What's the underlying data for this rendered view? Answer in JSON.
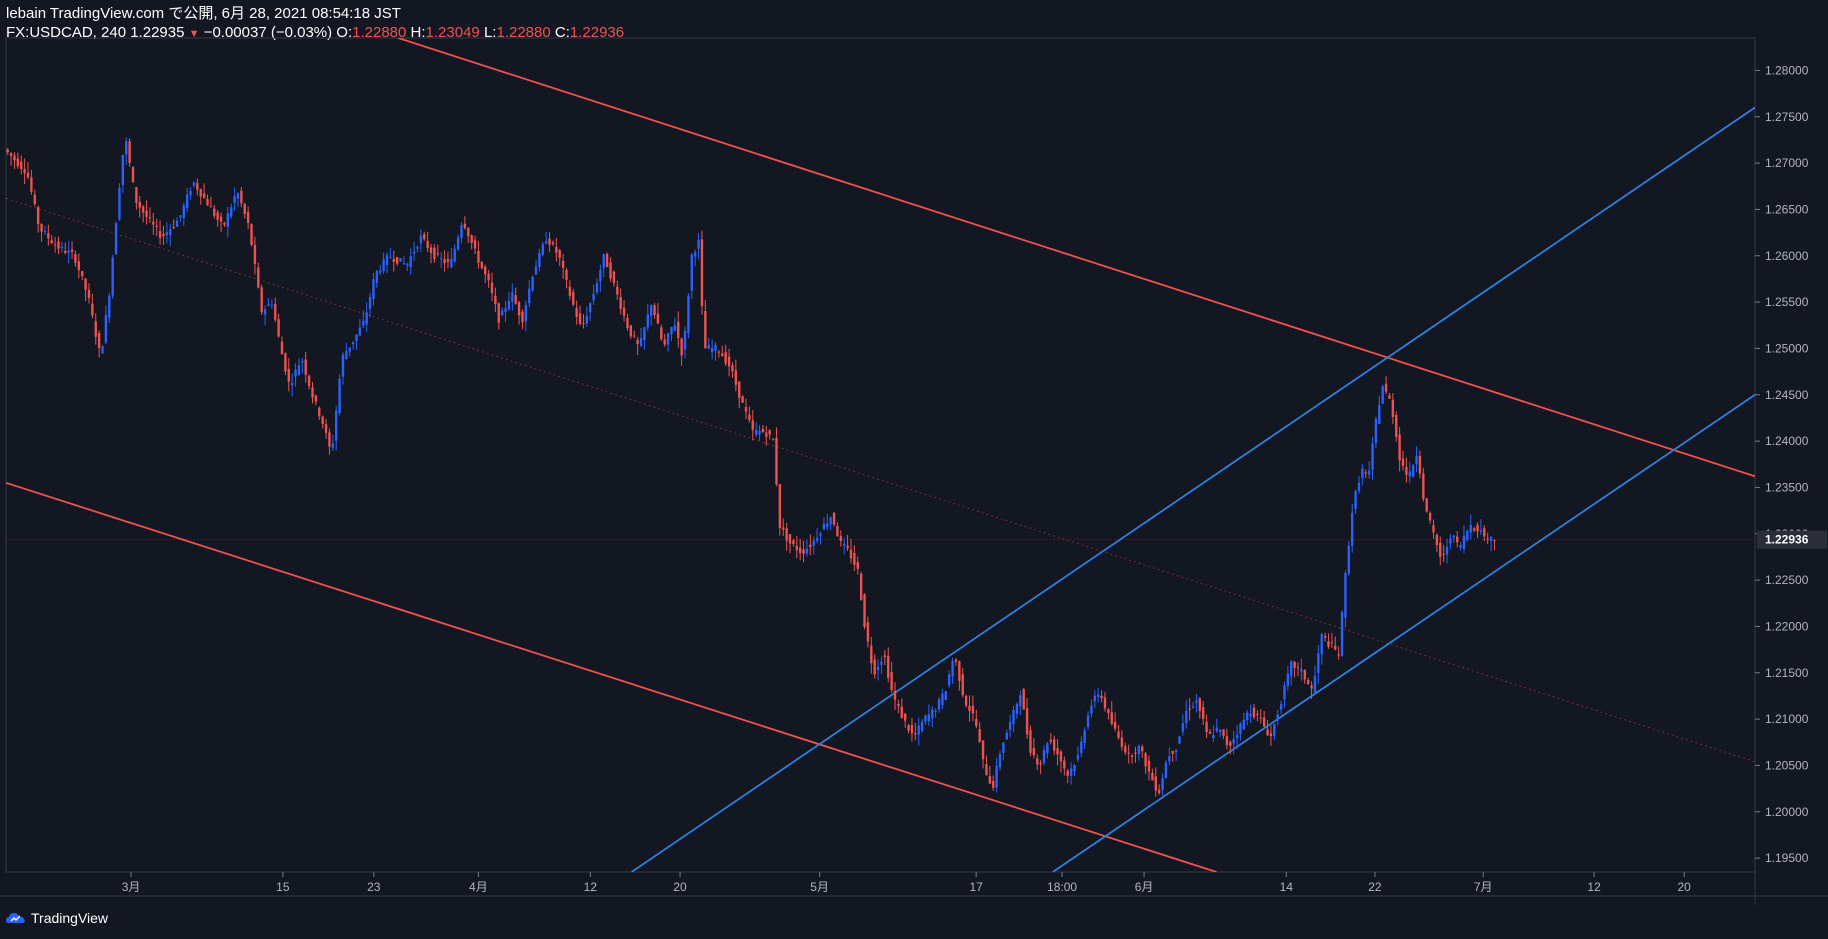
{
  "header": {
    "publish_line": "lebain TradingView.com で公開, 6月 28, 2021 08:54:18 JST",
    "symbol_info": "FX:USDCAD, 240",
    "last": "1.22935",
    "change_arrow": "▼",
    "change": "−0.00037 (−0.03%)",
    "o_label": "O:",
    "o_value": "1.22880",
    "h_label": "H:",
    "h_value": "1.23049",
    "l_label": "L:",
    "l_value": "1.22880",
    "c_label": "C:",
    "c_value": "1.22936"
  },
  "footer": {
    "brand": "TradingView"
  },
  "colors": {
    "background": "#131722",
    "up": "#2962ff",
    "down": "#ef5350",
    "channel_down": "#f0524f",
    "channel_up": "#2f7fe0",
    "axis_text": "#b2b5be",
    "price_tag_bg": "#2a2e39"
  },
  "chart_data": {
    "type": "candlestick",
    "symbol": "FX:USDCAD",
    "interval": "240",
    "ylim": [
      1.1935,
      1.2835
    ],
    "y_ticks": [
      "1.28000",
      "1.27500",
      "1.27000",
      "1.26500",
      "1.26000",
      "1.25500",
      "1.25000",
      "1.24500",
      "1.24000",
      "1.23500",
      "1.23000",
      "1.22500",
      "1.22000",
      "1.21500",
      "1.21000",
      "1.20500",
      "1.20000",
      "1.19500"
    ],
    "current_price_label": "1.22936",
    "x_ticks": [
      {
        "label": "3月",
        "pos": 0.0715
      },
      {
        "label": "15",
        "pos": 0.1583
      },
      {
        "label": "23",
        "pos": 0.2103
      },
      {
        "label": "4月",
        "pos": 0.2701
      },
      {
        "label": "12",
        "pos": 0.3341
      },
      {
        "label": "20",
        "pos": 0.3854
      },
      {
        "label": "5月",
        "pos": 0.4652
      },
      {
        "label": "17",
        "pos": 0.5547
      },
      {
        "label": "18:00",
        "pos": 0.6038
      },
      {
        "label": "6月",
        "pos": 0.6507
      },
      {
        "label": "14",
        "pos": 0.732
      },
      {
        "label": "22",
        "pos": 0.7827
      },
      {
        "label": "7月",
        "pos": 0.8446
      },
      {
        "label": "12",
        "pos": 0.908
      },
      {
        "label": "20",
        "pos": 0.9595
      }
    ],
    "price_path": [
      [
        0.0,
        1.2715
      ],
      [
        0.013,
        1.269
      ],
      [
        0.02,
        1.263
      ],
      [
        0.03,
        1.261
      ],
      [
        0.04,
        1.26
      ],
      [
        0.048,
        1.2555
      ],
      [
        0.055,
        1.249
      ],
      [
        0.06,
        1.256
      ],
      [
        0.066,
        1.268
      ],
      [
        0.069,
        1.273
      ],
      [
        0.075,
        1.266
      ],
      [
        0.082,
        1.264
      ],
      [
        0.09,
        1.262
      ],
      [
        0.1,
        1.264
      ],
      [
        0.108,
        1.268
      ],
      [
        0.115,
        1.266
      ],
      [
        0.125,
        1.263
      ],
      [
        0.133,
        1.267
      ],
      [
        0.14,
        1.263
      ],
      [
        0.147,
        1.254
      ],
      [
        0.153,
        1.255
      ],
      [
        0.158,
        1.25
      ],
      [
        0.163,
        1.246
      ],
      [
        0.17,
        1.249
      ],
      [
        0.176,
        1.245
      ],
      [
        0.182,
        1.242
      ],
      [
        0.187,
        1.2385
      ],
      [
        0.193,
        1.249
      ],
      [
        0.2,
        1.251
      ],
      [
        0.206,
        1.253
      ],
      [
        0.212,
        1.258
      ],
      [
        0.22,
        1.26
      ],
      [
        0.23,
        1.259
      ],
      [
        0.238,
        1.262
      ],
      [
        0.246,
        1.26
      ],
      [
        0.255,
        1.259
      ],
      [
        0.262,
        1.264
      ],
      [
        0.27,
        1.26
      ],
      [
        0.277,
        1.257
      ],
      [
        0.283,
        1.253
      ],
      [
        0.29,
        1.256
      ],
      [
        0.296,
        1.253
      ],
      [
        0.302,
        1.258
      ],
      [
        0.31,
        1.262
      ],
      [
        0.317,
        1.26
      ],
      [
        0.323,
        1.256
      ],
      [
        0.33,
        1.252
      ],
      [
        0.337,
        1.256
      ],
      [
        0.343,
        1.26
      ],
      [
        0.35,
        1.256
      ],
      [
        0.357,
        1.252
      ],
      [
        0.363,
        1.25
      ],
      [
        0.37,
        1.255
      ],
      [
        0.377,
        1.25
      ],
      [
        0.383,
        1.253
      ],
      [
        0.388,
        1.249
      ],
      [
        0.393,
        1.26
      ],
      [
        0.397,
        1.2615
      ],
      [
        0.4,
        1.25
      ],
      [
        0.408,
        1.25
      ],
      [
        0.415,
        1.248
      ],
      [
        0.422,
        1.244
      ],
      [
        0.428,
        1.241
      ],
      [
        0.435,
        1.241
      ],
      [
        0.44,
        1.24
      ],
      [
        0.443,
        1.231
      ],
      [
        0.449,
        1.229
      ],
      [
        0.456,
        1.228
      ],
      [
        0.462,
        1.229
      ],
      [
        0.467,
        1.2305
      ],
      [
        0.473,
        1.232
      ],
      [
        0.478,
        1.229
      ],
      [
        0.483,
        1.228
      ],
      [
        0.488,
        1.226
      ],
      [
        0.492,
        1.22
      ],
      [
        0.497,
        1.215
      ],
      [
        0.503,
        1.217
      ],
      [
        0.508,
        1.2125
      ],
      [
        0.514,
        1.21
      ],
      [
        0.52,
        1.208
      ],
      [
        0.526,
        1.21
      ],
      [
        0.532,
        1.211
      ],
      [
        0.538,
        1.213
      ],
      [
        0.543,
        1.217
      ],
      [
        0.549,
        1.212
      ],
      [
        0.555,
        1.21
      ],
      [
        0.56,
        1.205
      ],
      [
        0.565,
        1.2025
      ],
      [
        0.57,
        1.207
      ],
      [
        0.576,
        1.21
      ],
      [
        0.581,
        1.213
      ],
      [
        0.586,
        1.207
      ],
      [
        0.592,
        1.205
      ],
      [
        0.597,
        1.208
      ],
      [
        0.603,
        1.206
      ],
      [
        0.608,
        1.204
      ],
      [
        0.614,
        1.206
      ],
      [
        0.62,
        1.211
      ],
      [
        0.626,
        1.213
      ],
      [
        0.632,
        1.21
      ],
      [
        0.637,
        1.208
      ],
      [
        0.643,
        1.206
      ],
      [
        0.649,
        1.207
      ],
      [
        0.655,
        1.204
      ],
      [
        0.66,
        1.202
      ],
      [
        0.665,
        1.206
      ],
      [
        0.67,
        1.207
      ],
      [
        0.676,
        1.211
      ],
      [
        0.682,
        1.212
      ],
      [
        0.688,
        1.208
      ],
      [
        0.694,
        1.209
      ],
      [
        0.7,
        1.207
      ],
      [
        0.706,
        1.209
      ],
      [
        0.712,
        1.211
      ],
      [
        0.718,
        1.21
      ],
      [
        0.724,
        1.208
      ],
      [
        0.73,
        1.212
      ],
      [
        0.736,
        1.216
      ],
      [
        0.742,
        1.215
      ],
      [
        0.748,
        1.213
      ],
      [
        0.753,
        1.219
      ],
      [
        0.758,
        1.218
      ],
      [
        0.763,
        1.217
      ],
      [
        0.767,
        1.226
      ],
      [
        0.771,
        1.233
      ],
      [
        0.776,
        1.237
      ],
      [
        0.78,
        1.236
      ],
      [
        0.784,
        1.242
      ],
      [
        0.788,
        1.246
      ],
      [
        0.793,
        1.244
      ],
      [
        0.798,
        1.238
      ],
      [
        0.803,
        1.236
      ],
      [
        0.808,
        1.239
      ],
      [
        0.812,
        1.233
      ],
      [
        0.817,
        1.23
      ],
      [
        0.822,
        1.227
      ],
      [
        0.827,
        1.23
      ],
      [
        0.832,
        1.2285
      ],
      [
        0.838,
        1.231
      ],
      [
        0.843,
        1.2305
      ],
      [
        0.848,
        1.2295
      ],
      [
        0.852,
        1.2294
      ]
    ],
    "trend_lines": [
      {
        "color": "down",
        "width": 1.8,
        "points": [
          [
            0.2243,
            1.2835
          ],
          [
            1.0,
            1.2362
          ]
        ]
      },
      {
        "color": "down",
        "width": 1.8,
        "points": [
          [
            0.0,
            1.2355
          ],
          [
            0.6921,
            1.1935
          ]
        ]
      },
      {
        "color": "down",
        "width": 0.8,
        "dash": "2,3",
        "opacity": 0.55,
        "points": [
          [
            0.0,
            1.2662
          ],
          [
            1.0,
            1.2054
          ]
        ]
      },
      {
        "color": "up",
        "width": 1.8,
        "points": [
          [
            0.3577,
            1.1935
          ],
          [
            1.0,
            1.276
          ]
        ]
      },
      {
        "color": "up",
        "width": 1.8,
        "points": [
          [
            0.5985,
            1.1935
          ],
          [
            1.0,
            1.245
          ]
        ]
      }
    ]
  }
}
